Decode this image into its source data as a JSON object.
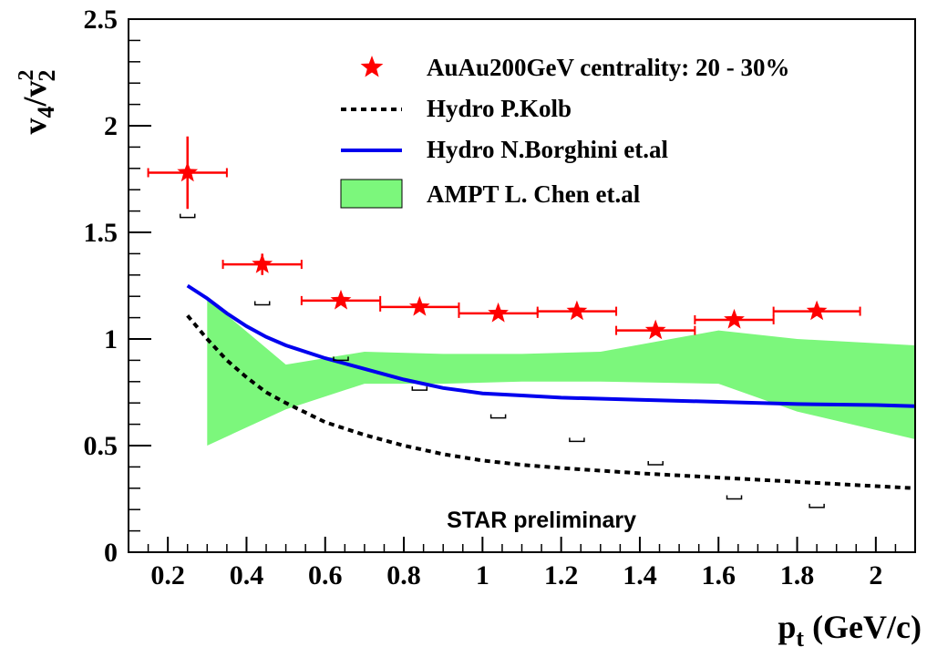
{
  "chart_data": {
    "type": "scatter",
    "xlabel": {
      "main": "p",
      "sub": "t",
      "rest": " (GeV/c)"
    },
    "ylabel": {
      "v1": "v",
      "s1": "4",
      "slash": "/",
      "v2": "v",
      "s2": "2",
      "sup": "2"
    },
    "xlim": [
      0.1,
      2.1
    ],
    "ylim": [
      0,
      2.5
    ],
    "x_ticks": [
      {
        "value": 0.2,
        "label": "0.2"
      },
      {
        "value": 0.4,
        "label": "0.4"
      },
      {
        "value": 0.6,
        "label": "0.6"
      },
      {
        "value": 0.8,
        "label": "0.8"
      },
      {
        "value": 1.0,
        "label": "1"
      },
      {
        "value": 1.2,
        "label": "1.2"
      },
      {
        "value": 1.4,
        "label": "1.4"
      },
      {
        "value": 1.6,
        "label": "1.6"
      },
      {
        "value": 1.8,
        "label": "1.8"
      },
      {
        "value": 2.0,
        "label": "2"
      }
    ],
    "y_ticks": [
      {
        "value": 0,
        "label": "0"
      },
      {
        "value": 0.5,
        "label": "0.5"
      },
      {
        "value": 1.0,
        "label": "1"
      },
      {
        "value": 1.5,
        "label": "1.5"
      },
      {
        "value": 2.0,
        "label": "2"
      },
      {
        "value": 2.5,
        "label": "2.5"
      }
    ],
    "grid": false,
    "legend_position": "top-right",
    "legend": [
      {
        "label": "AuAu200GeV centrality: 20 - 30%",
        "style": "star",
        "color": "#ff0000"
      },
      {
        "label": "Hydro P.Kolb",
        "style": "dashed-line",
        "color": "#000000"
      },
      {
        "label": "Hydro N.Borghini et.al",
        "style": "line",
        "color": "#0000ee"
      },
      {
        "label": "AMPT L. Chen et.al",
        "style": "band",
        "color": "#7cf77c"
      }
    ],
    "series": [
      {
        "name": "AuAu200GeV centrality: 20 - 30%",
        "kind": "points",
        "color": "#ff0000",
        "points": [
          {
            "x": 0.25,
            "y": 1.78,
            "xerr": 0.1,
            "yerr": 0.17
          },
          {
            "x": 0.44,
            "y": 1.35,
            "xerr": 0.1,
            "yerr": 0.05
          },
          {
            "x": 0.64,
            "y": 1.18,
            "xerr": 0.1,
            "yerr": 0.02
          },
          {
            "x": 0.84,
            "y": 1.15,
            "xerr": 0.1,
            "yerr": 0.02
          },
          {
            "x": 1.04,
            "y": 1.12,
            "xerr": 0.1,
            "yerr": 0.02
          },
          {
            "x": 1.24,
            "y": 1.13,
            "xerr": 0.1,
            "yerr": 0.02
          },
          {
            "x": 1.44,
            "y": 1.04,
            "xerr": 0.1,
            "yerr": 0.02
          },
          {
            "x": 1.64,
            "y": 1.09,
            "xerr": 0.1,
            "yerr": 0.02
          },
          {
            "x": 1.85,
            "y": 1.13,
            "xerr": 0.11,
            "yerr": 0.02
          }
        ],
        "systematic_lower": [
          1.57,
          1.16,
          0.9,
          0.76,
          0.63,
          0.52,
          0.41,
          0.25,
          0.21
        ]
      },
      {
        "name": "Hydro P.Kolb",
        "kind": "dashed-line",
        "color": "#000000",
        "x": [
          0.25,
          0.3,
          0.35,
          0.4,
          0.45,
          0.5,
          0.6,
          0.7,
          0.8,
          0.9,
          1.0,
          1.1,
          1.2,
          1.4,
          1.6,
          1.8,
          2.0,
          2.1
        ],
        "y": [
          1.11,
          1.0,
          0.9,
          0.82,
          0.75,
          0.7,
          0.61,
          0.55,
          0.5,
          0.46,
          0.43,
          0.41,
          0.395,
          0.37,
          0.35,
          0.33,
          0.31,
          0.3
        ]
      },
      {
        "name": "Hydro N.Borghini et.al",
        "kind": "line",
        "color": "#0000ee",
        "x": [
          0.25,
          0.3,
          0.35,
          0.4,
          0.45,
          0.5,
          0.6,
          0.7,
          0.8,
          0.9,
          1.0,
          1.1,
          1.2,
          1.4,
          1.6,
          1.8,
          2.0,
          2.1
        ],
        "y": [
          1.25,
          1.19,
          1.12,
          1.06,
          1.01,
          0.97,
          0.91,
          0.86,
          0.81,
          0.77,
          0.745,
          0.735,
          0.725,
          0.715,
          0.705,
          0.695,
          0.69,
          0.685
        ]
      },
      {
        "name": "AMPT L. Chen et.al",
        "kind": "band",
        "color": "#7cf77c",
        "x": [
          0.3,
          0.5,
          0.7,
          0.9,
          1.1,
          1.3,
          1.6,
          1.8,
          2.1
        ],
        "lower": [
          0.5,
          0.67,
          0.79,
          0.79,
          0.8,
          0.8,
          0.79,
          0.66,
          0.53
        ],
        "upper": [
          1.19,
          0.88,
          0.94,
          0.93,
          0.93,
          0.94,
          1.04,
          1.0,
          0.97
        ]
      }
    ],
    "annotations": [
      {
        "text": "STAR preliminary",
        "x": 1.15,
        "y": 0.15
      }
    ]
  }
}
